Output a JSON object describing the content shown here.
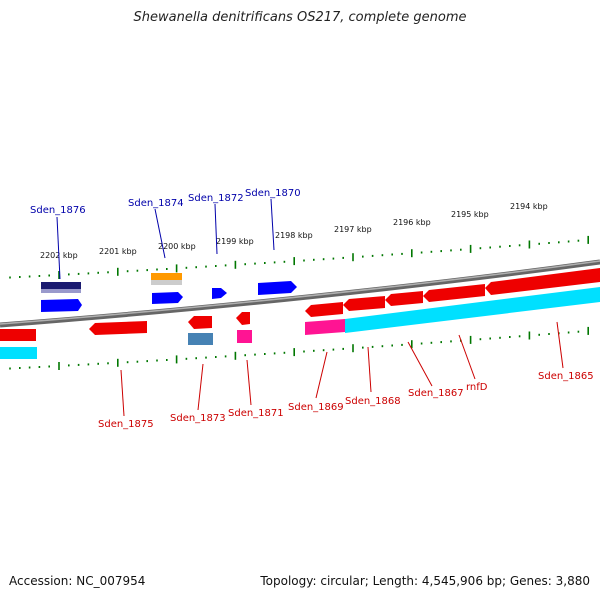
{
  "title": "Shewanella denitrificans OS217, complete genome",
  "footer": {
    "accession": "Accession: NC_007954",
    "summary": "Topology: circular; Length: 4,545,906 bp; Genes: 3,880"
  },
  "colors": {
    "forward_gene": "#ff0000",
    "rna": "#ff1493",
    "cyan_feature": "#00e0ff",
    "blue_gene": "#0000ff",
    "orange_feature": "#ff9900",
    "tick": "#007700",
    "backbone": "#808080",
    "top_label": "#0000aa",
    "bottom_label": "#cc0000"
  },
  "kbp_labels": [
    "2202 kbp",
    "2201 kbp",
    "2200 kbp",
    "2199 kbp",
    "2198 kbp",
    "2197 kbp",
    "2196 kbp",
    "2195 kbp",
    "2194 kbp"
  ],
  "top_gene_labels": [
    "Sden_1876",
    "Sden_1874",
    "Sden_1872",
    "Sden_1870"
  ],
  "bottom_gene_labels": [
    "Sden_1875",
    "Sden_1873",
    "Sden_1871",
    "Sden_1869",
    "Sden_1868",
    "Sden_1867",
    "rnfD",
    "Sden_1865"
  ]
}
